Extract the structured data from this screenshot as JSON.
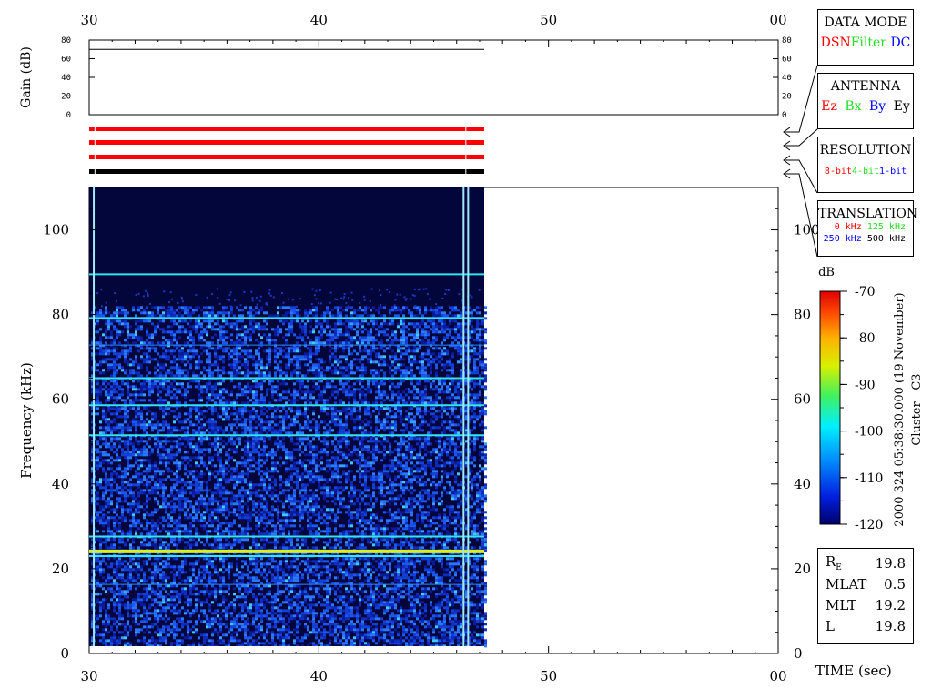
{
  "colors": {
    "red": "#ff0000",
    "green": "#22dd22",
    "blue": "#0000ff",
    "black": "#000000",
    "plot_bg": "#02063a"
  },
  "panels": {
    "data_mode": {
      "title": "DATA MODE",
      "items": [
        {
          "text": "DSN",
          "color": "#ff0000"
        },
        {
          "text": "Filter",
          "color": "#22dd22"
        },
        {
          "text": "DC",
          "color": "#0000ff"
        }
      ]
    },
    "antenna": {
      "title": "ANTENNA",
      "items": [
        {
          "text": "Ez",
          "color": "#ff0000"
        },
        {
          "text": "Bx",
          "color": "#22dd22"
        },
        {
          "text": "By",
          "color": "#0000ff"
        },
        {
          "text": "Ey",
          "color": "#000000"
        }
      ]
    },
    "resolution": {
      "title": "RESOLUTION",
      "items": [
        {
          "text": "8-bit",
          "color": "#ff0000"
        },
        {
          "text": "4-bit",
          "color": "#22dd22"
        },
        {
          "text": "1-bit",
          "color": "#0000ff"
        }
      ]
    },
    "translation": {
      "title": "TRANSLATION",
      "items": [
        {
          "text": "0 kHz",
          "color": "#ff0000"
        },
        {
          "text": "125 kHz",
          "color": "#22dd22"
        },
        {
          "text": "250 kHz",
          "color": "#0000ff"
        },
        {
          "text": "500 kHz",
          "color": "#000000"
        }
      ]
    }
  },
  "info": {
    "rows": [
      {
        "label": "R",
        "sub": "E",
        "value": "19.8"
      },
      {
        "label": "MLAT",
        "value": "0.5"
      },
      {
        "label": "MLT",
        "value": "19.2"
      },
      {
        "label": "L",
        "value": "19.8"
      }
    ]
  },
  "side_label": {
    "line1": "2000 324 05:38:30.000 (19 November)",
    "line2": "Cluster - C3"
  },
  "time_label": "TIME (sec)",
  "colorbar": {
    "unit": "dB",
    "ticks": [
      "-70",
      "-80",
      "-90",
      "-100",
      "-110",
      "-120"
    ],
    "range": [
      -120,
      -70
    ]
  },
  "chart_data": [
    {
      "type": "line",
      "ylabel": "Gain (dB)",
      "ylim": [
        0,
        80
      ],
      "yticks": [
        "0",
        "20",
        "40",
        "60",
        "80"
      ],
      "xlim": [
        30,
        60
      ],
      "xticks": [
        "30",
        "40",
        "50",
        "00"
      ],
      "series": [
        {
          "x": [
            30,
            47.2
          ],
          "y": [
            70,
            70
          ]
        }
      ]
    },
    {
      "type": "bar",
      "xlim": [
        30,
        60
      ],
      "bars": [
        {
          "color": "#ff0000",
          "x": [
            30,
            47.2
          ]
        },
        {
          "color": "#ff0000",
          "x": [
            30,
            47.2
          ]
        },
        {
          "color": "#ff0000",
          "x": [
            30,
            47.2
          ]
        },
        {
          "color": "#000000",
          "x": [
            30,
            47.2
          ]
        }
      ]
    },
    {
      "type": "heatmap",
      "ylabel": "Frequency (kHz)",
      "xlim": [
        30,
        60
      ],
      "ylim": [
        0,
        110
      ],
      "xticks": [
        "30",
        "40",
        "50",
        "00"
      ],
      "yticks": [
        "0",
        "20",
        "40",
        "60",
        "80",
        "100"
      ],
      "data_extent": {
        "x": [
          30,
          47.2
        ],
        "y": [
          0,
          110
        ]
      },
      "noise_ceiling_khz": 82,
      "lines_khz": [
        {
          "f": 89.5,
          "level": "cyan"
        },
        {
          "f": 79.2,
          "level": "cyan"
        },
        {
          "f": 72.8,
          "level": "faint"
        },
        {
          "f": 65,
          "level": "cyan"
        },
        {
          "f": 58.6,
          "level": "cyan"
        },
        {
          "f": 51.5,
          "level": "cyan"
        },
        {
          "f": 27.6,
          "level": "cyan"
        },
        {
          "f": 24.1,
          "level": "yellow"
        },
        {
          "f": 23,
          "level": "cyan"
        },
        {
          "f": 16.3,
          "level": "faint"
        }
      ],
      "vertical_lines_sec": [
        30.2,
        46.3,
        46.5
      ]
    }
  ]
}
